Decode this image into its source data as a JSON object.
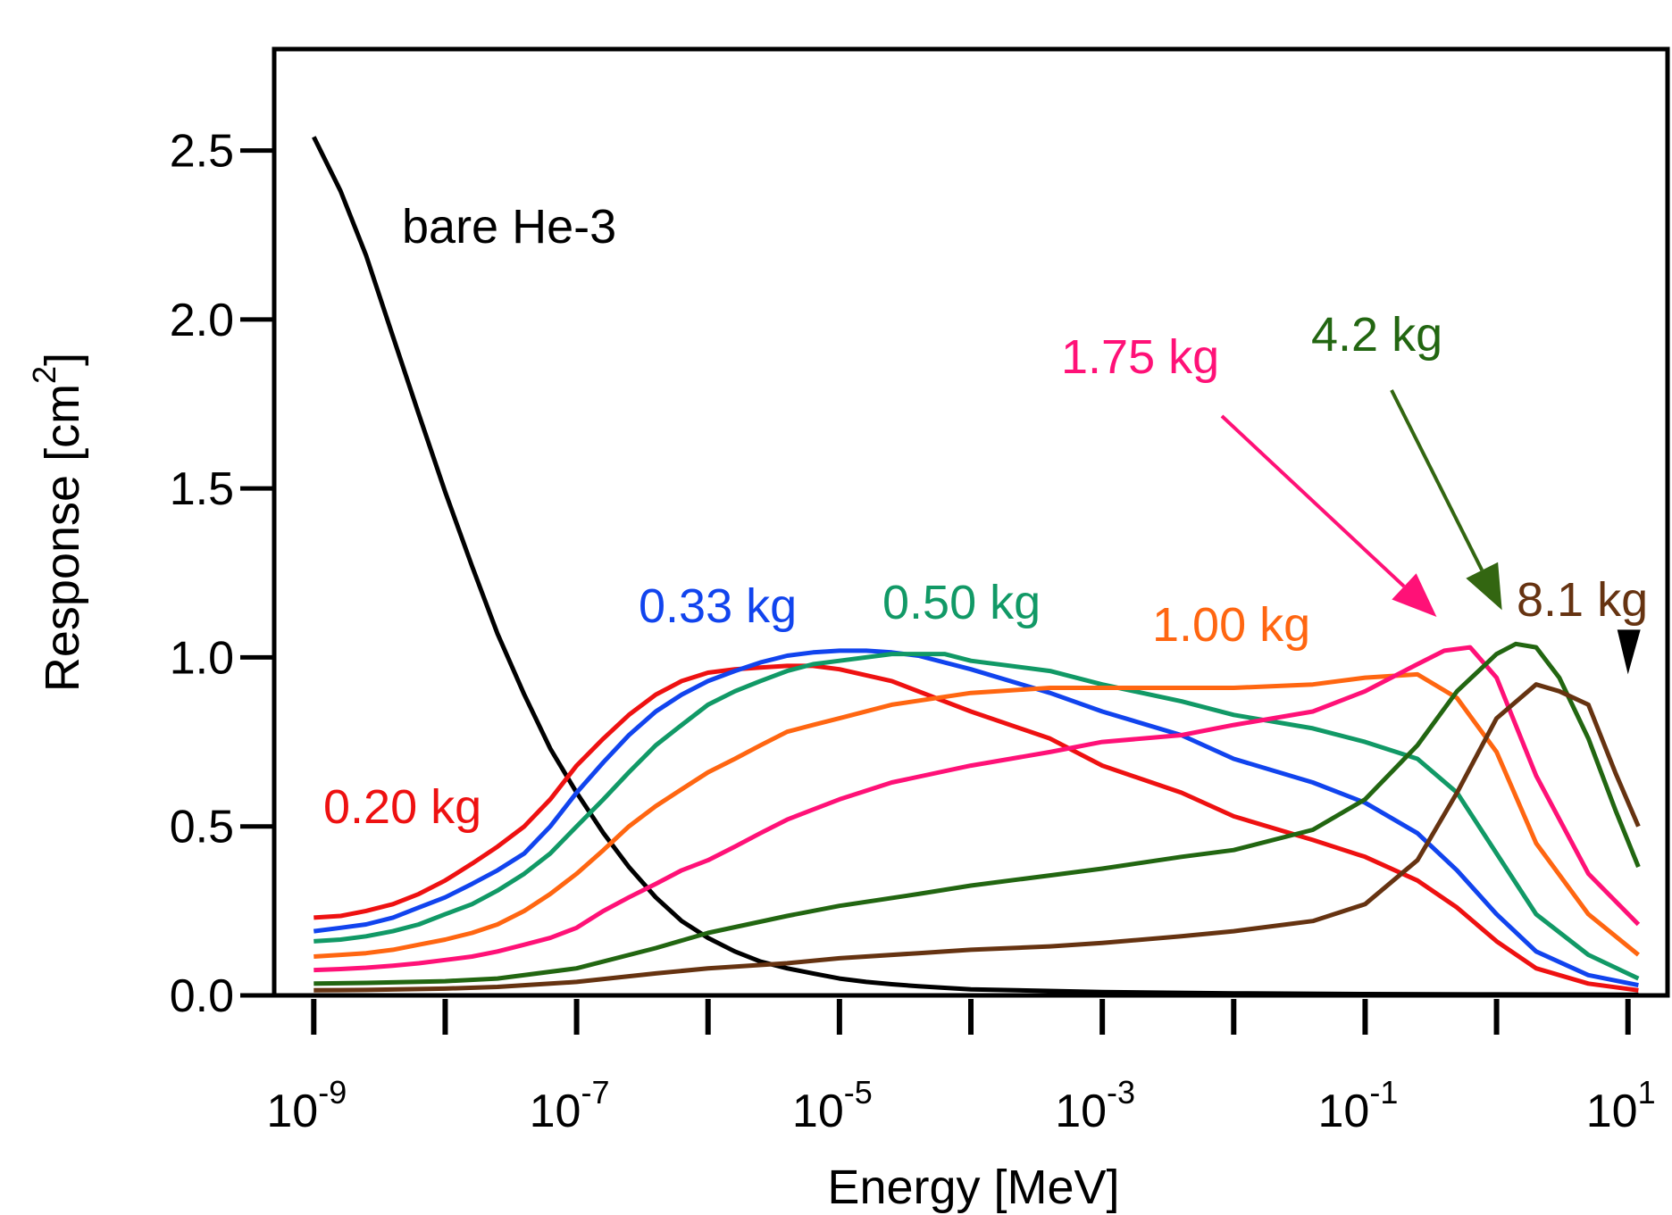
{
  "chart_data": {
    "type": "line",
    "title": "",
    "xlabel": "Energy [MeV]",
    "ylabel_main": "Response [cm",
    "ylabel_sup": "2",
    "ylabel_close": "]",
    "x_scale": "log",
    "xlim": [
      5e-10,
      20
    ],
    "ylim": [
      0,
      2.8
    ],
    "grid": false,
    "legend": "inline-labels",
    "y_ticks": [
      0.0,
      0.5,
      1.0,
      1.5,
      2.0,
      2.5
    ],
    "y_tick_labels": [
      "0.0",
      "0.5",
      "1.0",
      "1.5",
      "2.0",
      "2.5"
    ],
    "x_major_ticks": [
      1e-09,
      1e-07,
      1e-05,
      0.001,
      0.1,
      10
    ],
    "x_minor_ticks": [
      1e-08,
      1e-06,
      0.0001,
      0.01,
      1
    ],
    "x_tick_labels": [
      {
        "base": "10",
        "exp": "-9"
      },
      {
        "base": "10",
        "exp": "-7"
      },
      {
        "base": "10",
        "exp": "-5"
      },
      {
        "base": "10",
        "exp": "-3"
      },
      {
        "base": "10",
        "exp": "-1"
      },
      {
        "base": "10",
        "exp": "1"
      }
    ],
    "series": [
      {
        "name": "bare He-3",
        "color": "#000000",
        "x": [
          1e-09,
          1.6e-09,
          2.5e-09,
          4e-09,
          6.3e-09,
          1e-08,
          1.6e-08,
          2.5e-08,
          4e-08,
          6.3e-08,
          1e-07,
          1.6e-07,
          2.5e-07,
          4e-07,
          6.3e-07,
          1e-06,
          1.6e-06,
          2.5e-06,
          4e-06,
          6.3e-06,
          1e-05,
          1.6e-05,
          2.5e-05,
          4e-05,
          0.0001,
          0.001,
          0.01,
          0.1,
          1,
          12
        ],
        "y": [
          2.54,
          2.38,
          2.19,
          1.95,
          1.72,
          1.49,
          1.27,
          1.07,
          0.89,
          0.73,
          0.6,
          0.48,
          0.38,
          0.29,
          0.22,
          0.17,
          0.13,
          0.1,
          0.08,
          0.065,
          0.05,
          0.04,
          0.033,
          0.027,
          0.018,
          0.01,
          0.006,
          0.004,
          0.003,
          0.002
        ]
      },
      {
        "name": "0.20 kg",
        "color": "#ee1111",
        "x": [
          1e-09,
          1.6e-09,
          2.5e-09,
          4e-09,
          6.3e-09,
          1e-08,
          1.6e-08,
          2.5e-08,
          4e-08,
          6.3e-08,
          1e-07,
          1.6e-07,
          2.5e-07,
          4e-07,
          6.3e-07,
          1e-06,
          1.6e-06,
          2.5e-06,
          4e-06,
          6.3e-06,
          1e-05,
          2.5e-05,
          0.0001,
          0.0004,
          0.001,
          0.004,
          0.01,
          0.04,
          0.1,
          0.25,
          0.5,
          1,
          2,
          5,
          12
        ],
        "y": [
          0.23,
          0.235,
          0.25,
          0.27,
          0.3,
          0.34,
          0.39,
          0.44,
          0.5,
          0.58,
          0.68,
          0.76,
          0.83,
          0.89,
          0.93,
          0.955,
          0.965,
          0.97,
          0.975,
          0.975,
          0.965,
          0.93,
          0.84,
          0.76,
          0.68,
          0.6,
          0.53,
          0.46,
          0.41,
          0.34,
          0.26,
          0.16,
          0.08,
          0.035,
          0.015
        ]
      },
      {
        "name": "0.33 kg",
        "color": "#1144ee",
        "x": [
          1e-09,
          1.6e-09,
          2.5e-09,
          4e-09,
          6.3e-09,
          1e-08,
          1.6e-08,
          2.5e-08,
          4e-08,
          6.3e-08,
          1e-07,
          1.6e-07,
          2.5e-07,
          4e-07,
          6.3e-07,
          1e-06,
          1.6e-06,
          2.5e-06,
          4e-06,
          6.3e-06,
          1e-05,
          1.6e-05,
          2.5e-05,
          4e-05,
          0.0001,
          0.0004,
          0.001,
          0.004,
          0.01,
          0.04,
          0.1,
          0.25,
          0.5,
          1,
          2,
          5,
          12
        ],
        "y": [
          0.19,
          0.2,
          0.21,
          0.23,
          0.26,
          0.29,
          0.33,
          0.37,
          0.42,
          0.5,
          0.6,
          0.69,
          0.77,
          0.84,
          0.89,
          0.93,
          0.96,
          0.985,
          1.005,
          1.015,
          1.02,
          1.02,
          1.015,
          1.005,
          0.965,
          0.895,
          0.84,
          0.77,
          0.7,
          0.63,
          0.57,
          0.48,
          0.37,
          0.24,
          0.13,
          0.06,
          0.03
        ]
      },
      {
        "name": "0.50 kg",
        "color": "#119966",
        "x": [
          1e-09,
          1.6e-09,
          2.5e-09,
          4e-09,
          6.3e-09,
          1e-08,
          1.6e-08,
          2.5e-08,
          4e-08,
          6.3e-08,
          1e-07,
          1.6e-07,
          2.5e-07,
          4e-07,
          6.3e-07,
          1e-06,
          1.6e-06,
          2.5e-06,
          4e-06,
          6.3e-06,
          1e-05,
          2.5e-05,
          6.3e-05,
          0.0001,
          0.0004,
          0.001,
          0.004,
          0.01,
          0.04,
          0.1,
          0.25,
          0.5,
          1,
          2,
          5,
          12
        ],
        "y": [
          0.16,
          0.165,
          0.175,
          0.19,
          0.21,
          0.24,
          0.27,
          0.31,
          0.36,
          0.42,
          0.5,
          0.58,
          0.66,
          0.74,
          0.8,
          0.86,
          0.9,
          0.93,
          0.96,
          0.98,
          0.99,
          1.01,
          1.01,
          0.99,
          0.96,
          0.92,
          0.87,
          0.83,
          0.79,
          0.75,
          0.7,
          0.6,
          0.42,
          0.24,
          0.12,
          0.05
        ]
      },
      {
        "name": "1.00 kg",
        "color": "#ff6611",
        "x": [
          1e-09,
          1.6e-09,
          2.5e-09,
          4e-09,
          6.3e-09,
          1e-08,
          1.6e-08,
          2.5e-08,
          4e-08,
          6.3e-08,
          1e-07,
          1.6e-07,
          2.5e-07,
          4e-07,
          6.3e-07,
          1e-06,
          1.6e-06,
          2.5e-06,
          4e-06,
          6.3e-06,
          1e-05,
          2.5e-05,
          0.0001,
          0.0004,
          0.001,
          0.004,
          0.01,
          0.04,
          0.1,
          0.25,
          0.5,
          1,
          2,
          5,
          12
        ],
        "y": [
          0.115,
          0.12,
          0.125,
          0.135,
          0.15,
          0.165,
          0.185,
          0.21,
          0.25,
          0.3,
          0.36,
          0.43,
          0.5,
          0.56,
          0.61,
          0.66,
          0.7,
          0.74,
          0.78,
          0.8,
          0.82,
          0.86,
          0.895,
          0.91,
          0.91,
          0.91,
          0.91,
          0.92,
          0.94,
          0.95,
          0.88,
          0.72,
          0.45,
          0.24,
          0.12
        ]
      },
      {
        "name": "1.75 kg",
        "color": "#ff1177",
        "x": [
          1e-09,
          1.6e-09,
          2.5e-09,
          4e-09,
          6.3e-09,
          1e-08,
          1.6e-08,
          2.5e-08,
          4e-08,
          6.3e-08,
          1e-07,
          1.6e-07,
          2.5e-07,
          4e-07,
          6.3e-07,
          1e-06,
          1.6e-06,
          2.5e-06,
          4e-06,
          6.3e-06,
          1e-05,
          2.5e-05,
          0.0001,
          0.0004,
          0.001,
          0.004,
          0.01,
          0.04,
          0.1,
          0.25,
          0.4,
          0.63,
          1,
          2,
          5,
          12
        ],
        "y": [
          0.075,
          0.078,
          0.082,
          0.088,
          0.095,
          0.105,
          0.115,
          0.13,
          0.15,
          0.17,
          0.2,
          0.25,
          0.29,
          0.33,
          0.37,
          0.4,
          0.44,
          0.48,
          0.52,
          0.55,
          0.58,
          0.63,
          0.68,
          0.72,
          0.75,
          0.77,
          0.8,
          0.84,
          0.9,
          0.98,
          1.02,
          1.03,
          0.94,
          0.65,
          0.36,
          0.21
        ]
      },
      {
        "name": "4.2 kg",
        "color": "#226611",
        "x": [
          1e-09,
          2.5e-09,
          1e-08,
          2.5e-08,
          1e-07,
          4e-07,
          1e-06,
          4e-06,
          1e-05,
          4e-05,
          0.0001,
          0.0004,
          0.001,
          0.004,
          0.01,
          0.04,
          0.1,
          0.25,
          0.5,
          1,
          1.4,
          2,
          3,
          5,
          8,
          12
        ],
        "y": [
          0.035,
          0.037,
          0.042,
          0.05,
          0.08,
          0.14,
          0.185,
          0.235,
          0.265,
          0.3,
          0.325,
          0.355,
          0.375,
          0.41,
          0.43,
          0.49,
          0.58,
          0.74,
          0.9,
          1.01,
          1.04,
          1.03,
          0.94,
          0.76,
          0.55,
          0.38
        ]
      },
      {
        "name": "8.1 kg",
        "color": "#663311",
        "x": [
          1e-09,
          2.5e-09,
          1e-08,
          2.5e-08,
          1e-07,
          4e-07,
          1e-06,
          4e-06,
          1e-05,
          4e-05,
          0.0001,
          0.0004,
          0.001,
          0.004,
          0.01,
          0.04,
          0.1,
          0.25,
          0.5,
          1,
          2,
          3,
          5,
          8,
          12
        ],
        "y": [
          0.015,
          0.016,
          0.02,
          0.025,
          0.04,
          0.065,
          0.08,
          0.095,
          0.11,
          0.125,
          0.135,
          0.145,
          0.155,
          0.175,
          0.19,
          0.22,
          0.27,
          0.4,
          0.6,
          0.82,
          0.92,
          0.9,
          0.86,
          0.66,
          0.5
        ]
      }
    ],
    "annotations": [
      {
        "text": "bare He-3",
        "color": "#000000"
      },
      {
        "text": "0.20 kg",
        "color": "#ee1111"
      },
      {
        "text": "0.33 kg",
        "color": "#1144ee"
      },
      {
        "text": "0.50 kg",
        "color": "#119966"
      },
      {
        "text": "1.00 kg",
        "color": "#ff6611"
      },
      {
        "text": "1.75 kg",
        "color": "#ff1177"
      },
      {
        "text": "4.2 kg",
        "color": "#226611"
      },
      {
        "text": "8.1 kg",
        "color": "#663311"
      }
    ],
    "arrows": [
      {
        "label": "1.75 kg",
        "color": "#ff1177",
        "target_x": 0.35,
        "target_y": 1.12
      },
      {
        "label": "4.2 kg",
        "color": "#336611",
        "target_x": 1.1,
        "target_y": 1.14
      },
      {
        "label": "8.1 kg",
        "color": "#000000",
        "target_x": 10,
        "target_y": 0.95
      }
    ]
  }
}
